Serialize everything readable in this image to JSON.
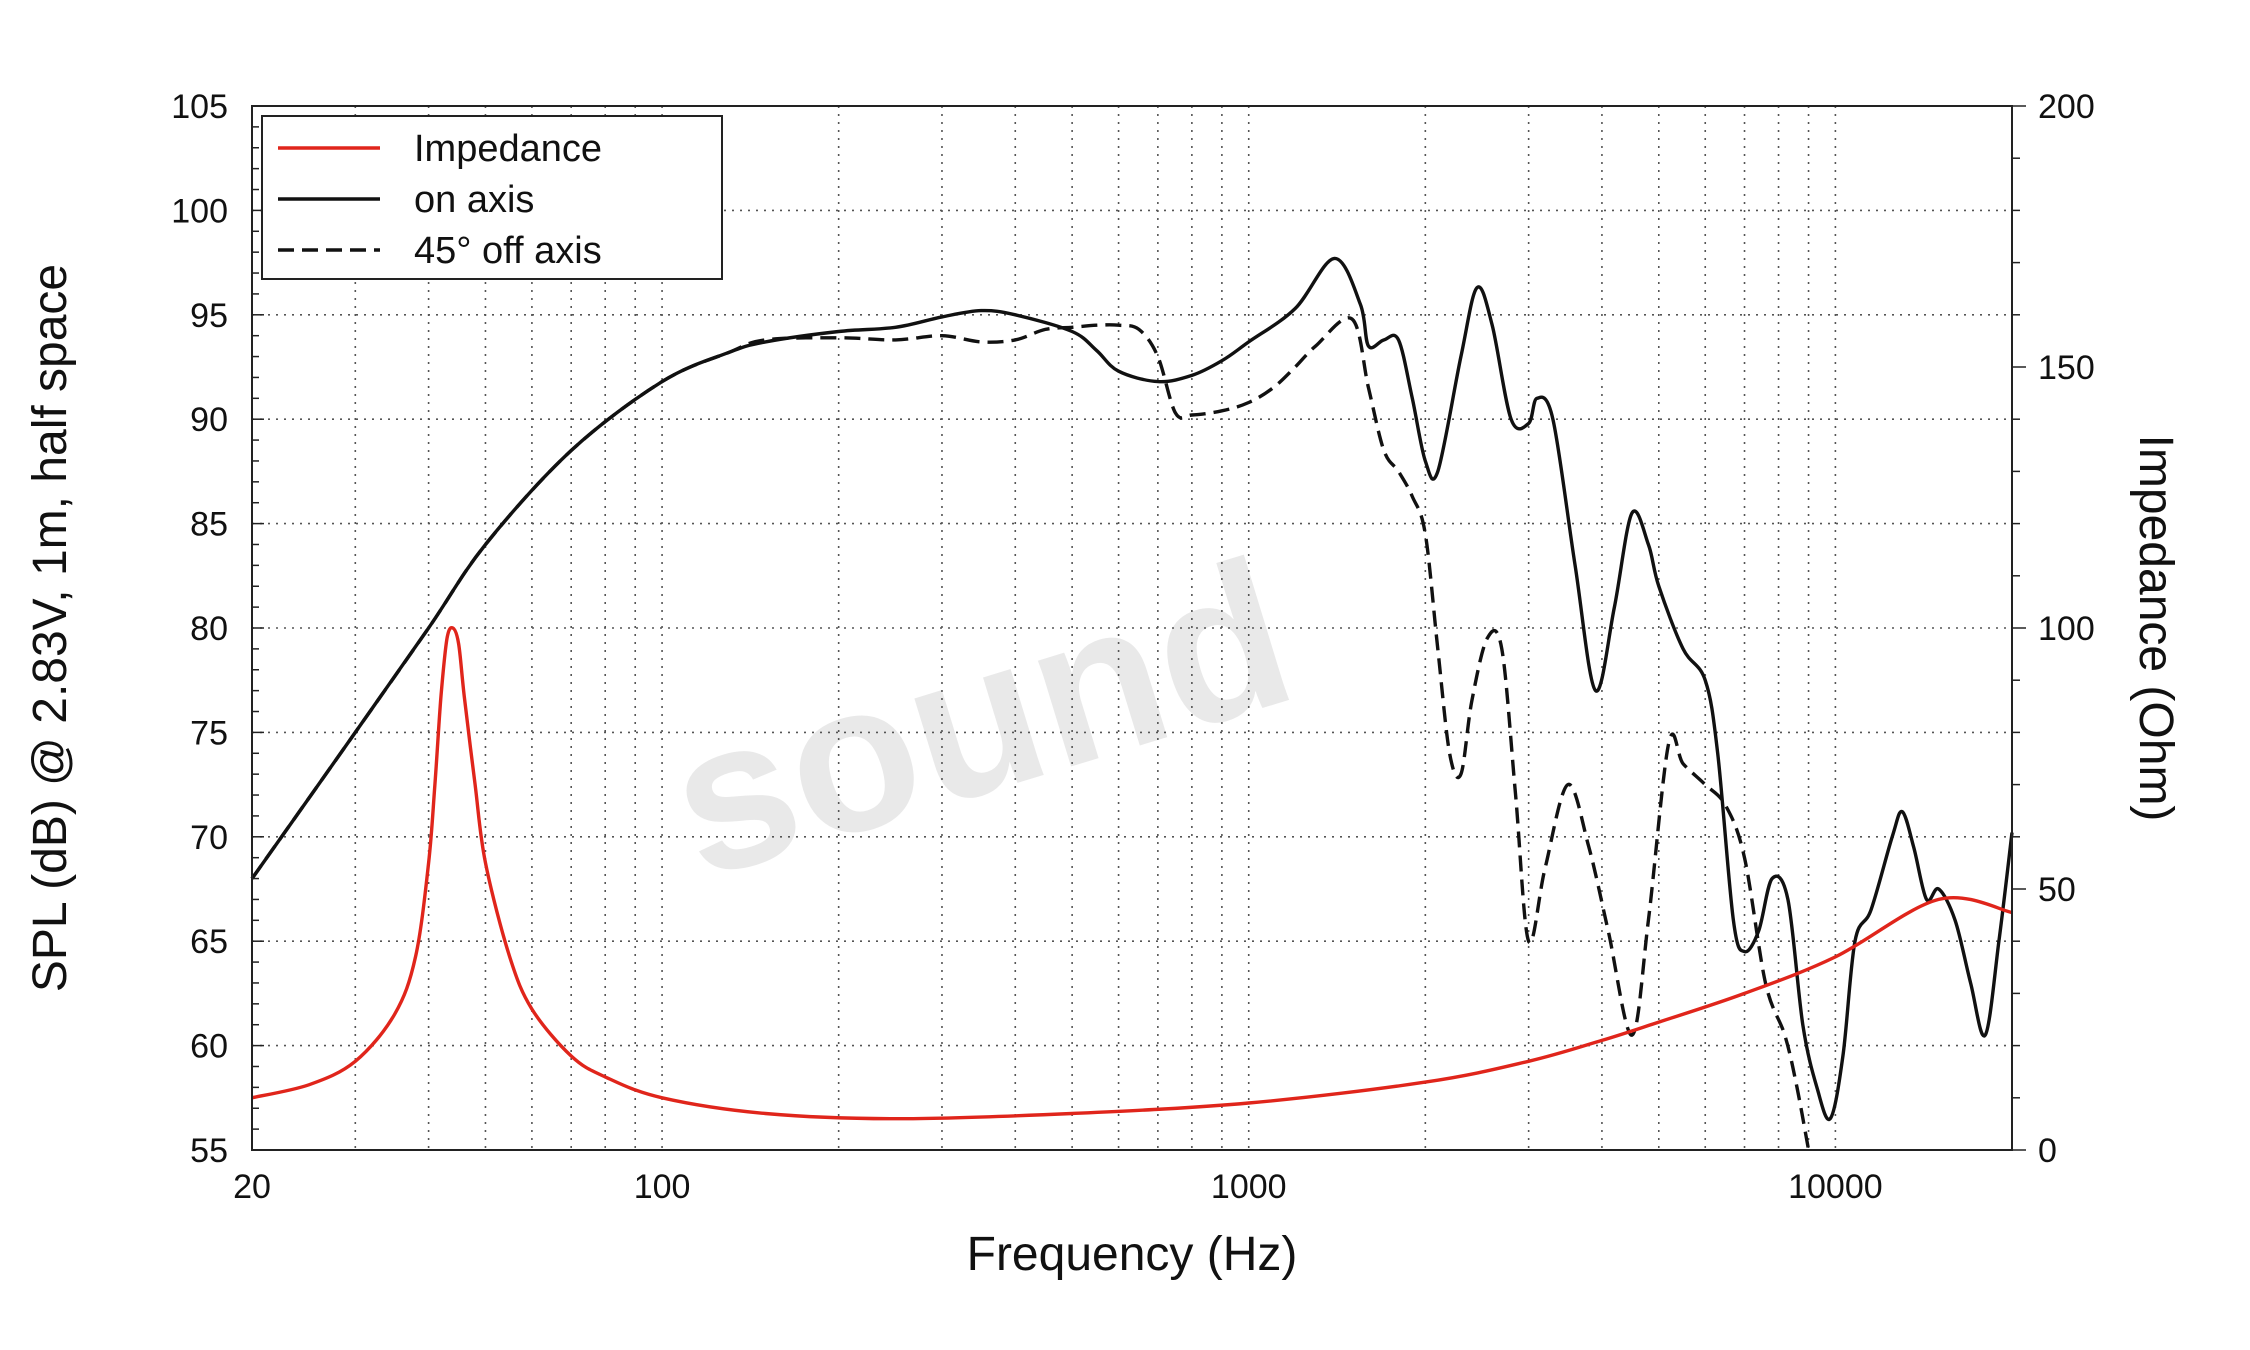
{
  "chart_data": {
    "type": "line",
    "watermark": "sound",
    "xlabel": "Frequency (Hz)",
    "ylabel": "SPL (dB) @ 2.83V, 1m, half space",
    "y2label": "Impedance (Ohm)",
    "x_scale": "log",
    "xlim": [
      20,
      20000
    ],
    "ylim": [
      55,
      105
    ],
    "y2lim": [
      0,
      200
    ],
    "x_ticks": [
      20,
      100,
      1000,
      10000
    ],
    "x_tick_labels": [
      "20",
      "100",
      "1000",
      "10000"
    ],
    "y_ticks": [
      55,
      60,
      65,
      70,
      75,
      80,
      85,
      90,
      95,
      100,
      105
    ],
    "y_tick_labels": [
      "55",
      "60",
      "65",
      "70",
      "75",
      "80",
      "85",
      "90",
      "95",
      "100",
      "105"
    ],
    "y2_ticks": [
      0,
      50,
      100,
      150,
      200
    ],
    "y2_tick_labels": [
      "0",
      "50",
      "100",
      "150",
      "200"
    ],
    "grid": true,
    "legend_position": "top-left",
    "series": [
      {
        "name": "Impedance",
        "axis": "right",
        "color": "#e0251b",
        "style": "solid",
        "points": [
          [
            20,
            10
          ],
          [
            25,
            12.5
          ],
          [
            30,
            17
          ],
          [
            35,
            26
          ],
          [
            38,
            37
          ],
          [
            40,
            55
          ],
          [
            41,
            70
          ],
          [
            42,
            87
          ],
          [
            43,
            98
          ],
          [
            44,
            100
          ],
          [
            45,
            97
          ],
          [
            46,
            87
          ],
          [
            48,
            70
          ],
          [
            50,
            55
          ],
          [
            55,
            37
          ],
          [
            60,
            27
          ],
          [
            70,
            18
          ],
          [
            80,
            14
          ],
          [
            100,
            10
          ],
          [
            150,
            7
          ],
          [
            250,
            6
          ],
          [
            500,
            7
          ],
          [
            1000,
            9
          ],
          [
            2000,
            13
          ],
          [
            3000,
            17
          ],
          [
            4000,
            21
          ],
          [
            5000,
            24.5
          ],
          [
            7000,
            30
          ],
          [
            10000,
            37
          ],
          [
            15000,
            48
          ],
          [
            20000,
            45.5
          ]
        ]
      },
      {
        "name": "on axis",
        "axis": "left",
        "color": "#111111",
        "style": "solid",
        "points": [
          [
            20,
            68
          ],
          [
            30,
            75
          ],
          [
            40,
            80
          ],
          [
            50,
            84
          ],
          [
            70,
            88.5
          ],
          [
            100,
            91.8
          ],
          [
            130,
            93.2
          ],
          [
            150,
            93.7
          ],
          [
            200,
            94.2
          ],
          [
            250,
            94.4
          ],
          [
            300,
            94.9
          ],
          [
            350,
            95.2
          ],
          [
            400,
            95.0
          ],
          [
            500,
            94.2
          ],
          [
            550,
            93.3
          ],
          [
            600,
            92.3
          ],
          [
            700,
            91.8
          ],
          [
            800,
            92.1
          ],
          [
            900,
            92.8
          ],
          [
            1000,
            93.7
          ],
          [
            1200,
            95.3
          ],
          [
            1400,
            97.7
          ],
          [
            1550,
            95.5
          ],
          [
            1600,
            93.5
          ],
          [
            1700,
            93.8
          ],
          [
            1800,
            93.8
          ],
          [
            1900,
            91.0
          ],
          [
            2000,
            88.0
          ],
          [
            2100,
            87.5
          ],
          [
            2300,
            93.0
          ],
          [
            2450,
            96.3
          ],
          [
            2600,
            94.5
          ],
          [
            2800,
            90.0
          ],
          [
            3000,
            89.8
          ],
          [
            3100,
            91.0
          ],
          [
            3300,
            90.0
          ],
          [
            3600,
            83.0
          ],
          [
            3900,
            77.0
          ],
          [
            4200,
            81.0
          ],
          [
            4500,
            85.5
          ],
          [
            4800,
            84.0
          ],
          [
            5000,
            82.0
          ],
          [
            5500,
            79.0
          ],
          [
            6000,
            77.5
          ],
          [
            6300,
            74.0
          ],
          [
            6700,
            66.0
          ],
          [
            7000,
            64.5
          ],
          [
            7400,
            65.5
          ],
          [
            7800,
            68.0
          ],
          [
            8300,
            67.0
          ],
          [
            8800,
            61.0
          ],
          [
            9300,
            58.0
          ],
          [
            9800,
            56.5
          ],
          [
            10300,
            59.5
          ],
          [
            10800,
            65.0
          ],
          [
            11500,
            66.5
          ],
          [
            12500,
            70.0
          ],
          [
            13000,
            71.2
          ],
          [
            13600,
            69.5
          ],
          [
            14300,
            67.0
          ],
          [
            15000,
            67.5
          ],
          [
            16000,
            66.0
          ],
          [
            17000,
            63.0
          ],
          [
            18000,
            60.5
          ],
          [
            19000,
            65.0
          ],
          [
            20000,
            70.2
          ]
        ]
      },
      {
        "name": "45° off axis",
        "axis": "left",
        "color": "#111111",
        "style": "dashed",
        "points": [
          [
            20,
            68
          ],
          [
            30,
            75
          ],
          [
            40,
            80
          ],
          [
            50,
            84
          ],
          [
            70,
            88.5
          ],
          [
            100,
            91.8
          ],
          [
            130,
            93.2
          ],
          [
            150,
            93.8
          ],
          [
            200,
            93.9
          ],
          [
            250,
            93.8
          ],
          [
            300,
            94.0
          ],
          [
            350,
            93.7
          ],
          [
            400,
            93.8
          ],
          [
            450,
            94.3
          ],
          [
            500,
            94.4
          ],
          [
            550,
            94.5
          ],
          [
            600,
            94.5
          ],
          [
            650,
            94.3
          ],
          [
            700,
            93.0
          ],
          [
            750,
            90.3
          ],
          [
            800,
            90.2
          ],
          [
            900,
            90.4
          ],
          [
            1000,
            90.8
          ],
          [
            1100,
            91.5
          ],
          [
            1200,
            92.5
          ],
          [
            1300,
            93.5
          ],
          [
            1500,
            94.8
          ],
          [
            1600,
            91.5
          ],
          [
            1700,
            88.5
          ],
          [
            1800,
            87.5
          ],
          [
            1900,
            86.3
          ],
          [
            2000,
            84.5
          ],
          [
            2100,
            79.0
          ],
          [
            2200,
            74.0
          ],
          [
            2300,
            73.0
          ],
          [
            2400,
            76.5
          ],
          [
            2550,
            79.5
          ],
          [
            2700,
            79.0
          ],
          [
            2850,
            72.0
          ],
          [
            3000,
            65.0
          ],
          [
            3200,
            68.5
          ],
          [
            3500,
            72.5
          ],
          [
            3800,
            69.5
          ],
          [
            4100,
            65.5
          ],
          [
            4500,
            60.5
          ],
          [
            4800,
            66.0
          ],
          [
            5200,
            74.5
          ],
          [
            5500,
            73.5
          ],
          [
            6000,
            72.5
          ],
          [
            6500,
            71.5
          ],
          [
            7000,
            69.0
          ],
          [
            7600,
            63.0
          ],
          [
            8200,
            60.5
          ],
          [
            8600,
            58.0
          ],
          [
            9000,
            55.0
          ]
        ]
      }
    ]
  }
}
